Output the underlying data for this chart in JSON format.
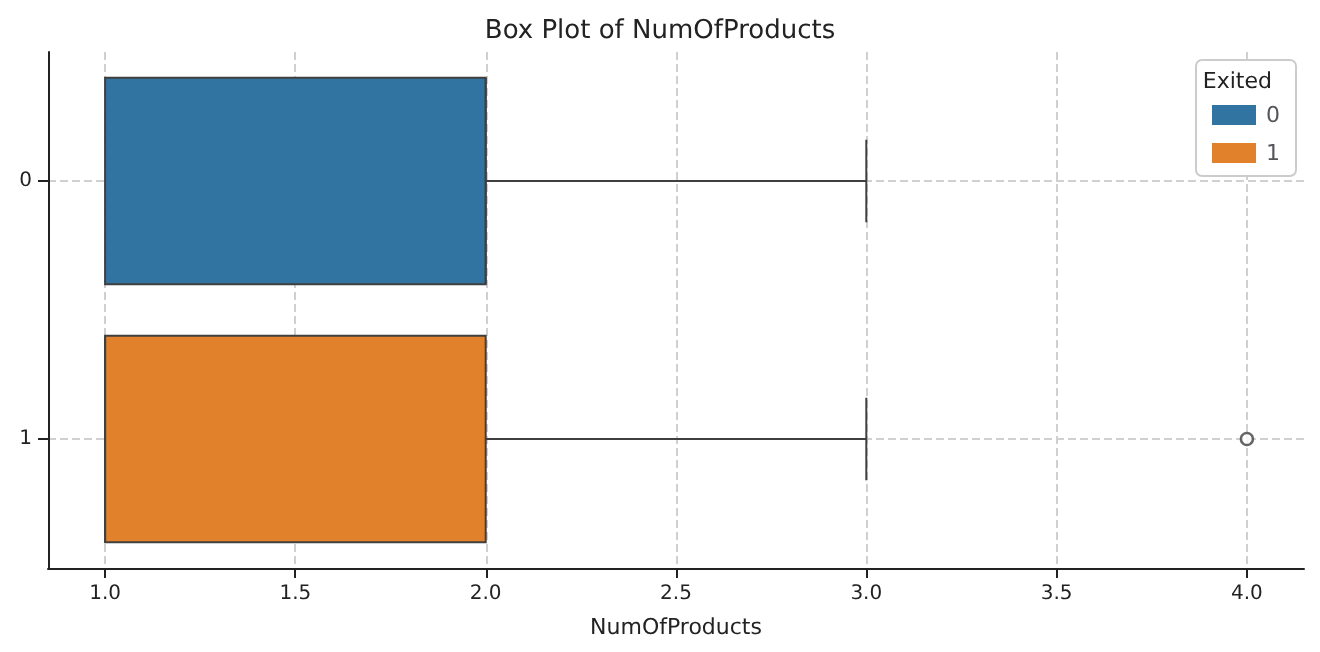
{
  "chart_data": {
    "type": "box",
    "orientation": "horizontal",
    "title": "Box Plot of NumOfProducts",
    "xlabel": "NumOfProducts",
    "categories": [
      "0",
      "1"
    ],
    "series": [
      {
        "name": "0",
        "color": "#3274a1",
        "boxes": [
          {
            "low": 1,
            "q1": 1,
            "median": 2,
            "q3": 2,
            "high": 3
          },
          null
        ]
      },
      {
        "name": "1",
        "color": "#e1812c",
        "boxes": [
          null,
          {
            "low": 1,
            "q1": 1,
            "median": 1,
            "q3": 2,
            "high": 3,
            "outliers": [
              4
            ]
          }
        ]
      }
    ],
    "xlim": [
      0.85,
      4.15
    ],
    "xticks": [
      {
        "value": 1,
        "label": "1.0"
      },
      {
        "value": 1.5,
        "label": "1.5"
      },
      {
        "value": 2,
        "label": "2.0"
      },
      {
        "value": 2.5,
        "label": "2.5"
      },
      {
        "value": 3,
        "label": "3.0"
      },
      {
        "value": 3.5,
        "label": "3.5"
      },
      {
        "value": 4,
        "label": "4.0"
      }
    ],
    "grid": true,
    "legend": "top right",
    "legend_title": "Exited"
  }
}
